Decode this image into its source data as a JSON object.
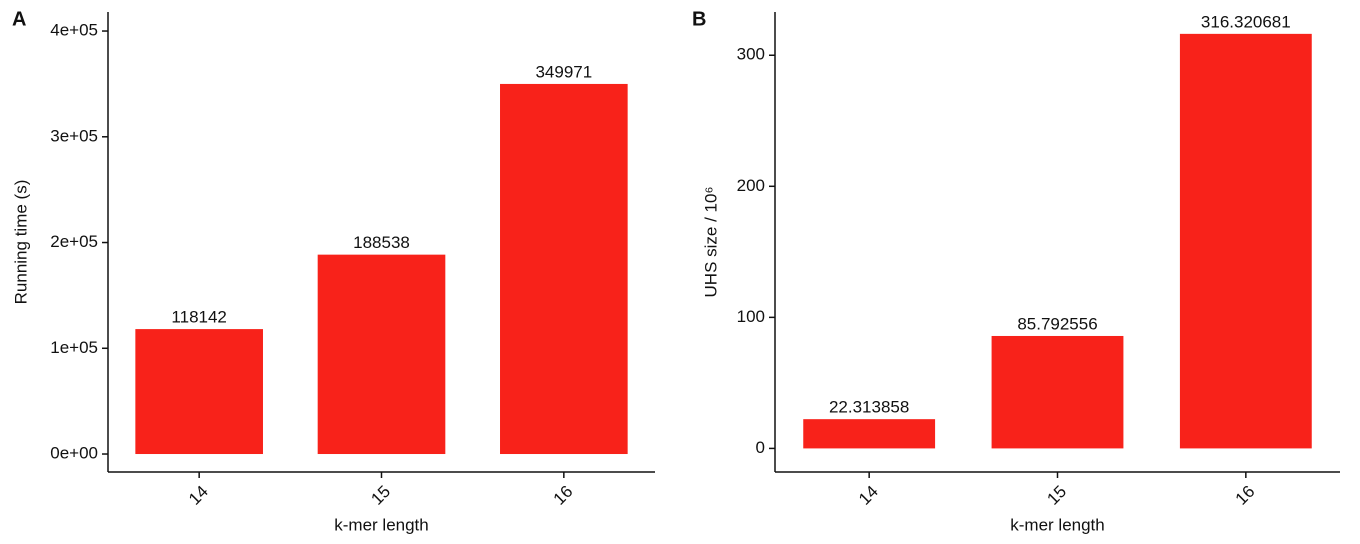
{
  "chart_data": [
    {
      "type": "bar",
      "panel": "A",
      "x_label": "k-mer length",
      "y_label": "Running time (s)",
      "categories": [
        "14",
        "15",
        "16"
      ],
      "values": [
        118142,
        188538,
        349971
      ],
      "color": "#f8221a",
      "ylim": [
        -17000,
        418000
      ],
      "yticks": [
        {
          "value": 0,
          "label": "0e+00"
        },
        {
          "value": 100000,
          "label": "1e+05"
        },
        {
          "value": 200000,
          "label": "2e+05"
        },
        {
          "value": 300000,
          "label": "3e+05"
        },
        {
          "value": 400000,
          "label": "4e+05"
        }
      ]
    },
    {
      "type": "bar",
      "panel": "B",
      "x_label": "k-mer length",
      "y_label": "UHS size / 10⁶",
      "categories": [
        "14",
        "15",
        "16"
      ],
      "values": [
        22.313858,
        85.792556,
        316.320681
      ],
      "color": "#f8221a",
      "ylim": [
        -18,
        333
      ],
      "yticks": [
        0,
        100,
        200,
        300
      ]
    }
  ]
}
